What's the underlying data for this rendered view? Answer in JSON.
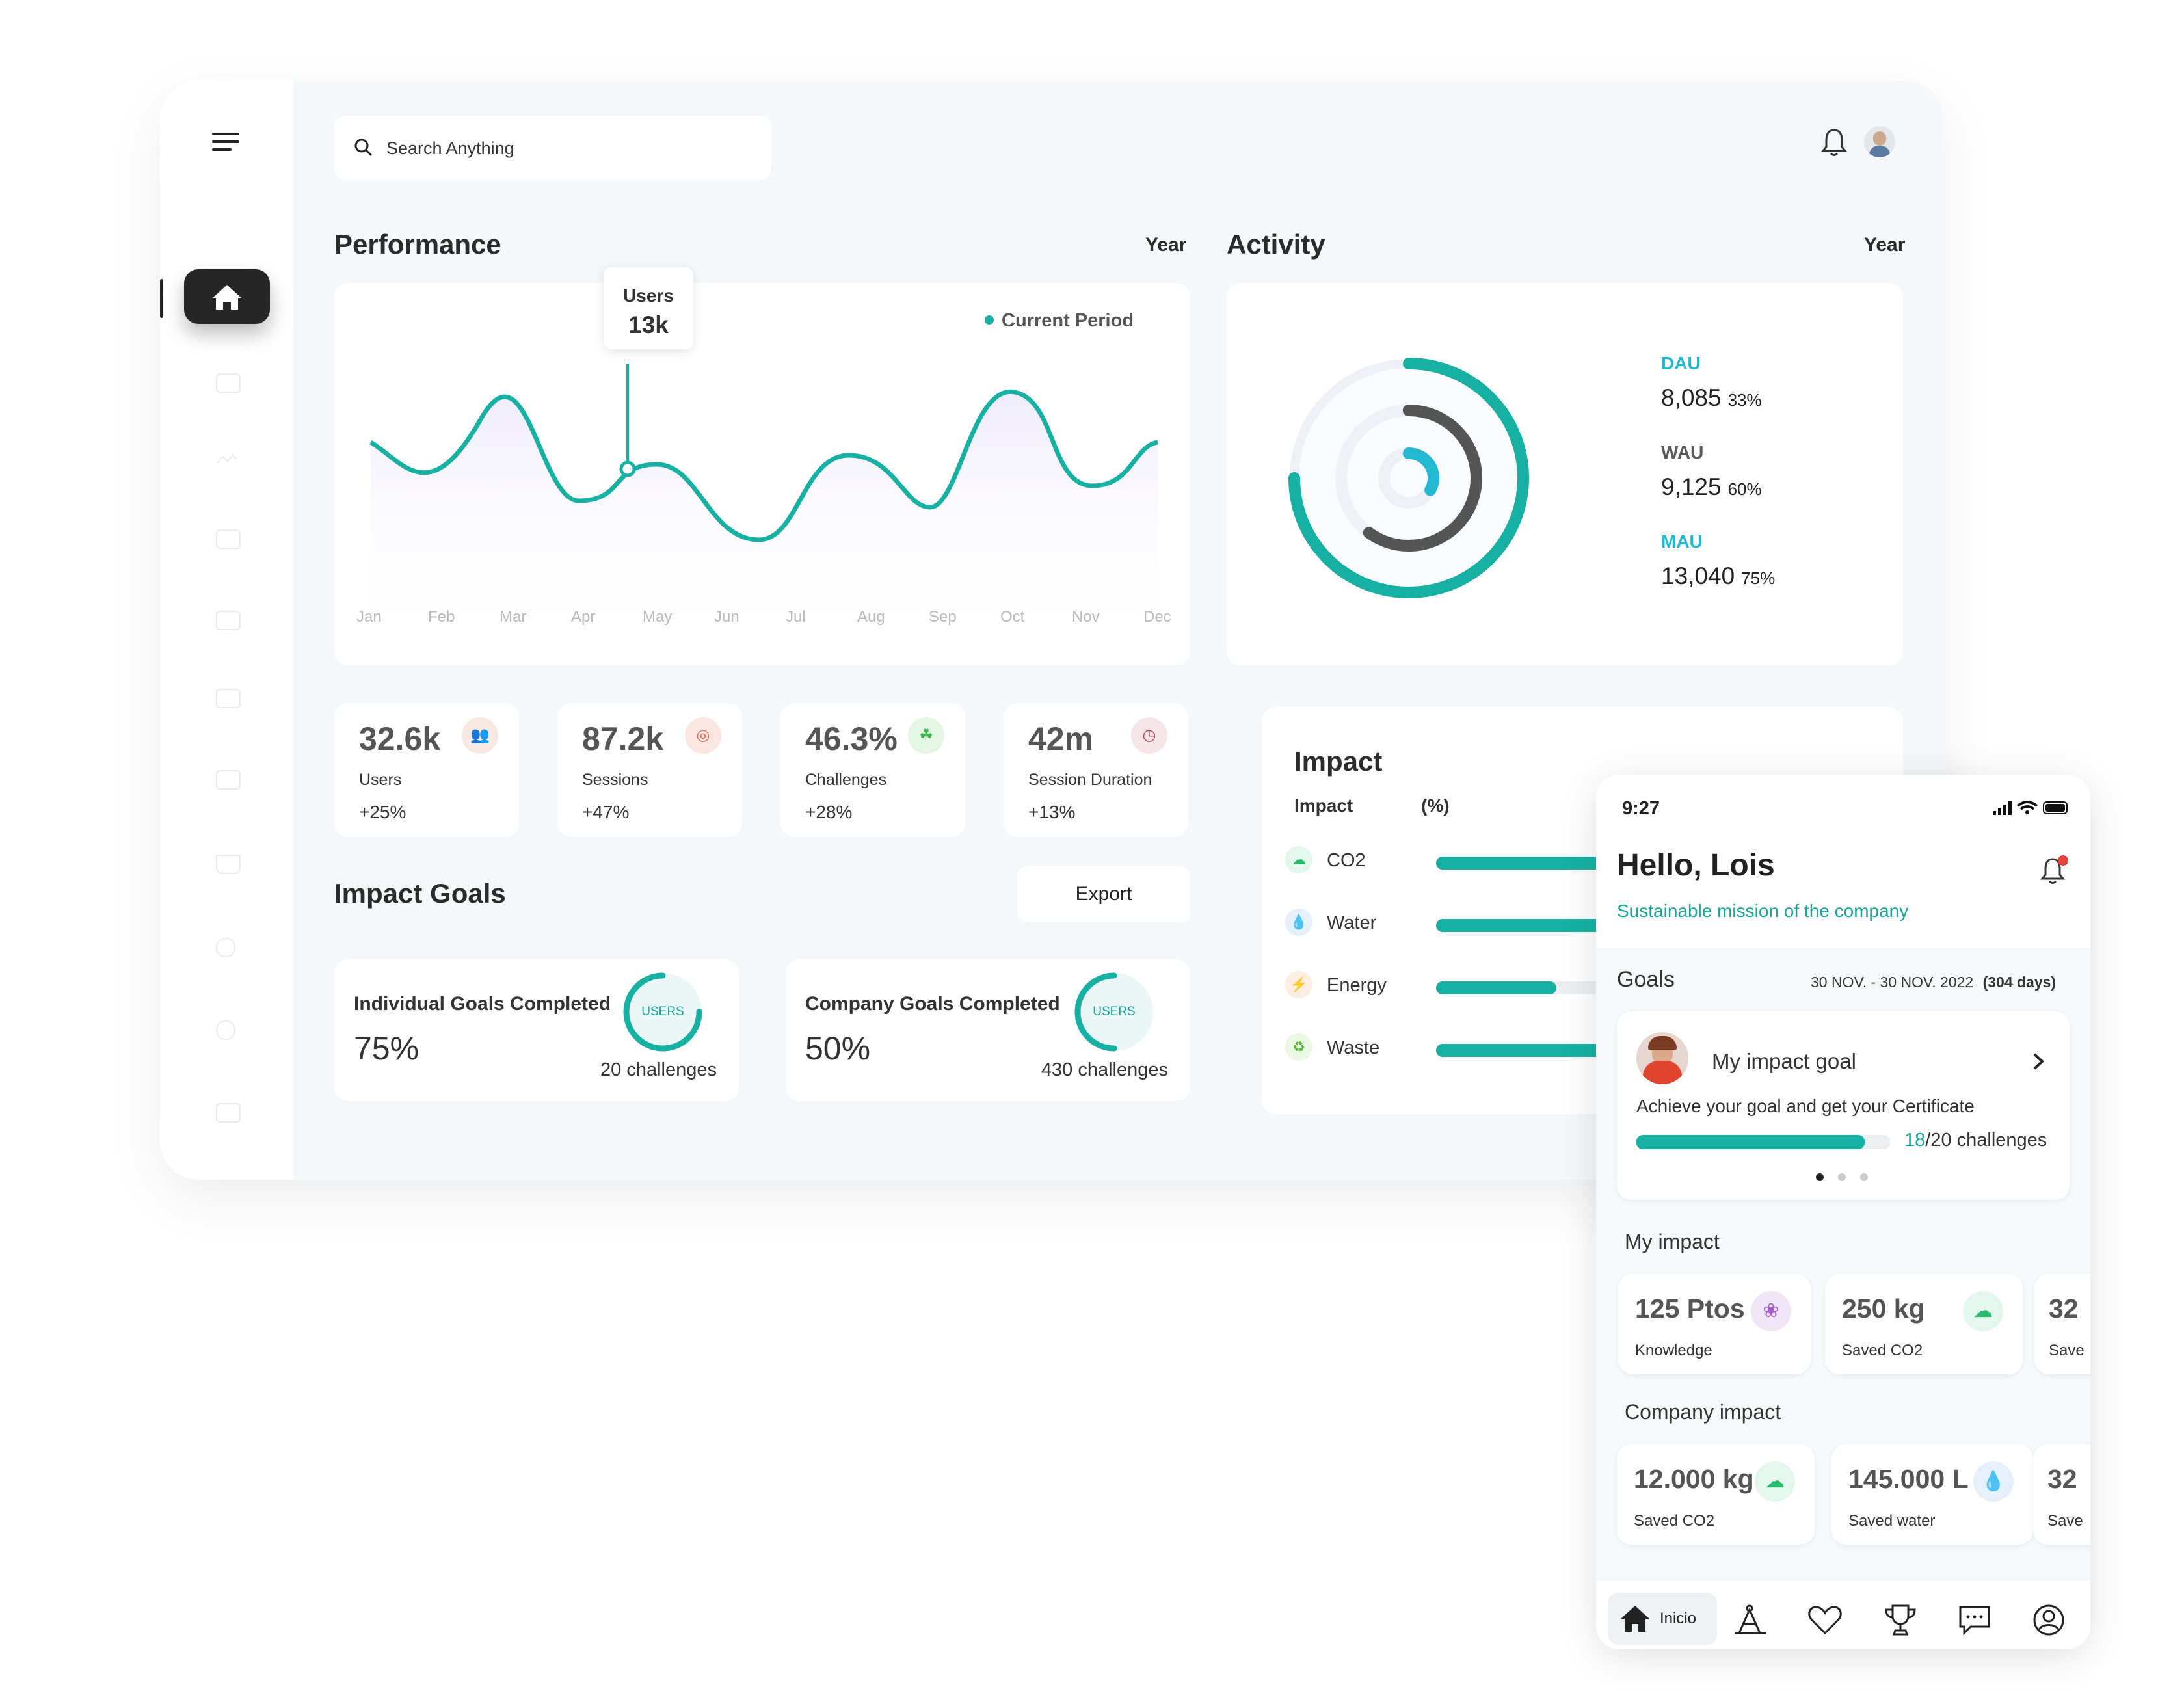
{
  "search": {
    "placeholder": "Search Anything"
  },
  "performance": {
    "title": "Performance",
    "period": "Year",
    "legend": "Current Period",
    "tooltip": {
      "label": "Users",
      "value": "13k"
    },
    "months": [
      "Jan",
      "Feb",
      "Mar",
      "Apr",
      "May",
      "Jun",
      "Jul",
      "Aug",
      "Sep",
      "Oct",
      "Nov",
      "Dec"
    ]
  },
  "activity": {
    "title": "Activity",
    "period": "Year",
    "items": [
      {
        "label": "DAU",
        "value": "8,085",
        "pct": "33%",
        "color": "#23b9d3"
      },
      {
        "label": "WAU",
        "value": "9,125",
        "pct": "60%",
        "color": "#5a5a5a"
      },
      {
        "label": "MAU",
        "value": "13,040",
        "pct": "75%",
        "color": "#23b9d3"
      }
    ]
  },
  "stats": [
    {
      "value": "32.6k",
      "label": "Users",
      "change": "+25%",
      "icon": "users-icon",
      "color": "#f7e9e1"
    },
    {
      "value": "87.2k",
      "label": "Sessions",
      "change": "+47%",
      "icon": "sessions-icon",
      "color": "#fbe6e1"
    },
    {
      "value": "46.3%",
      "label": "Challenges",
      "change": "+28%",
      "icon": "challenges-icon",
      "color": "#e4f7e4"
    },
    {
      "value": "42m",
      "label": "Session Duration",
      "change": "+13%",
      "icon": "clock-icon",
      "color": "#f6e6e9"
    }
  ],
  "impact_goals": {
    "title": "Impact Goals",
    "export_label": "Export",
    "cards": [
      {
        "title": "Individual Goals Completed",
        "pct": "75%",
        "challenges": "20 challenges",
        "ring_label": "USERS",
        "progress": 0.75
      },
      {
        "title": "Company Goals Completed",
        "pct": "50%",
        "challenges": "430 challenges",
        "ring_label": "USERS",
        "progress": 0.5
      }
    ]
  },
  "impact": {
    "title": "Impact",
    "col1": "Impact",
    "col2": "(%)",
    "rows": [
      {
        "label": "CO2",
        "icon": "cloud-icon",
        "value": 0.8
      },
      {
        "label": "Water",
        "icon": "drop-icon",
        "value": 0.8
      },
      {
        "label": "Energy",
        "icon": "plug-icon",
        "value": 0.44
      },
      {
        "label": "Waste",
        "icon": "recycle-icon",
        "value": 0.8
      }
    ]
  },
  "phone": {
    "time": "9:27",
    "greeting": "Hello, Lois",
    "subtitle": "Sustainable mission of the company",
    "goals_title": "Goals",
    "goals_range": "30 NOV. - 30 NOV. 2022",
    "goals_days": "(304 days)",
    "goal_card": {
      "title": "My impact goal",
      "desc": "Achieve your goal and get your Certificate",
      "done": "18",
      "total": "/20 challenges",
      "progress": 0.9
    },
    "my_impact_title": "My impact",
    "my_impact": [
      {
        "value": "125 Ptos",
        "label": "Knowledge",
        "icon": "brain-icon",
        "color": "#f1e6f8"
      },
      {
        "value": "250 kg",
        "label": "Saved CO2",
        "icon": "cloud-icon",
        "color": "#e4f7ee"
      },
      {
        "value": "32",
        "label": "Save",
        "icon": "",
        "color": ""
      }
    ],
    "company_impact_title": "Company impact",
    "company_impact": [
      {
        "value": "12.000 kg",
        "label": "Saved CO2",
        "icon": "cloud-icon",
        "color": "#e4f7ee"
      },
      {
        "value": "145.000 L",
        "label": "Saved water",
        "icon": "drop-icon",
        "color": "#e6f0fb"
      },
      {
        "value": "32",
        "label": "Save",
        "icon": "",
        "color": ""
      }
    ],
    "nav": {
      "home_label": "Inicio"
    }
  }
}
